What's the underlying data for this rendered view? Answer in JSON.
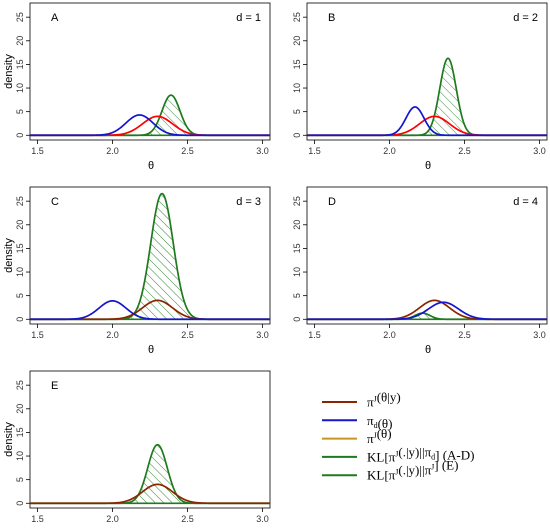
{
  "chart_data": [
    {
      "type": "line",
      "panel": "A",
      "annotation": "d = 1",
      "xlabel": "θ",
      "ylabel": "density",
      "xlim": [
        1.45,
        3.05
      ],
      "ylim": [
        -1,
        28
      ],
      "xticks": [
        1.5,
        2.0,
        2.5,
        3.0
      ],
      "xtick_labels": [
        "1.5",
        "2.0",
        "2.5",
        "3.0"
      ],
      "yticks": [
        0,
        5,
        10,
        15,
        20,
        25
      ],
      "ytick_labels": [
        "0",
        "5",
        "10",
        "15",
        "20",
        "25"
      ],
      "series": [
        {
          "key": "posterior",
          "color": "#ff0000",
          "peak_x": 2.3,
          "peak_y": 4.0,
          "sd": 0.1
        },
        {
          "key": "prior",
          "color": "#1515cc",
          "peak_x": 2.18,
          "peak_y": 4.3,
          "sd": 0.09
        },
        {
          "key": "kl",
          "color": "#1e7a1e",
          "peak_x": 2.39,
          "peak_y": 8.5,
          "sd": 0.06,
          "hatched": true
        }
      ]
    },
    {
      "type": "line",
      "panel": "B",
      "annotation": "d = 2",
      "xlabel": "θ",
      "ylabel": "",
      "xlim": [
        1.45,
        3.05
      ],
      "ylim": [
        -1,
        28
      ],
      "xticks": [
        1.5,
        2.0,
        2.5,
        3.0
      ],
      "xtick_labels": [
        "1.5",
        "2.0",
        "2.5",
        "3.0"
      ],
      "yticks": [
        0,
        5,
        10,
        15,
        20,
        25
      ],
      "ytick_labels": [
        "0",
        "5",
        "10",
        "15",
        "20",
        "25"
      ],
      "series": [
        {
          "key": "posterior",
          "color": "#ff0000",
          "peak_x": 2.3,
          "peak_y": 4.0,
          "sd": 0.1
        },
        {
          "key": "prior",
          "color": "#1515cc",
          "peak_x": 2.17,
          "peak_y": 6.0,
          "sd": 0.06
        },
        {
          "key": "kl",
          "color": "#1e7a1e",
          "peak_x": 2.39,
          "peak_y": 16.3,
          "sd": 0.055,
          "hatched": true
        }
      ]
    },
    {
      "type": "line",
      "panel": "C",
      "annotation": "d = 3",
      "xlabel": "θ",
      "ylabel": "density",
      "xlim": [
        1.45,
        3.05
      ],
      "ylim": [
        -1,
        28
      ],
      "xticks": [
        1.5,
        2.0,
        2.5,
        3.0
      ],
      "xtick_labels": [
        "1.5",
        "2.0",
        "2.5",
        "3.0"
      ],
      "yticks": [
        0,
        5,
        10,
        15,
        20,
        25
      ],
      "ytick_labels": [
        "0",
        "5",
        "10",
        "15",
        "20",
        "25"
      ],
      "series": [
        {
          "key": "posterior",
          "color": "#8b2500",
          "peak_x": 2.3,
          "peak_y": 4.0,
          "sd": 0.1
        },
        {
          "key": "prior",
          "color": "#1515cc",
          "peak_x": 2.0,
          "peak_y": 3.9,
          "sd": 0.09
        },
        {
          "key": "kl",
          "color": "#1e7a1e",
          "peak_x": 2.33,
          "peak_y": 26.6,
          "sd": 0.075,
          "hatched": true
        }
      ]
    },
    {
      "type": "line",
      "panel": "D",
      "annotation": "d = 4",
      "xlabel": "θ",
      "ylabel": "",
      "xlim": [
        1.45,
        3.05
      ],
      "ylim": [
        -1,
        28
      ],
      "xticks": [
        1.5,
        2.0,
        2.5,
        3.0
      ],
      "xtick_labels": [
        "1.5",
        "2.0",
        "2.5",
        "3.0"
      ],
      "yticks": [
        0,
        5,
        10,
        15,
        20,
        25
      ],
      "ytick_labels": [
        "0",
        "5",
        "10",
        "15",
        "20",
        "25"
      ],
      "series": [
        {
          "key": "posterior",
          "color": "#8b2500",
          "peak_x": 2.3,
          "peak_y": 4.0,
          "sd": 0.1
        },
        {
          "key": "prior",
          "color": "#1515cc",
          "peak_x": 2.36,
          "peak_y": 3.6,
          "sd": 0.1
        },
        {
          "key": "kl",
          "color": "#1e7a1e",
          "peak_x": 2.22,
          "peak_y": 1.3,
          "sd": 0.05,
          "hatched": true
        }
      ]
    },
    {
      "type": "line",
      "panel": "E",
      "annotation": "",
      "xlabel": "θ",
      "ylabel": "density",
      "xlim": [
        1.45,
        3.05
      ],
      "ylim": [
        -1,
        28
      ],
      "xticks": [
        1.5,
        2.0,
        2.5,
        3.0
      ],
      "xtick_labels": [
        "1.5",
        "2.0",
        "2.5",
        "3.0"
      ],
      "yticks": [
        0,
        5,
        10,
        15,
        20,
        25
      ],
      "ytick_labels": [
        "0",
        "5",
        "10",
        "15",
        "20",
        "25"
      ],
      "series": [
        {
          "key": "posterior",
          "color": "#8b2500",
          "peak_x": 2.3,
          "peak_y": 4.0,
          "sd": 0.1
        },
        {
          "key": "kl",
          "color": "#1e7a1e",
          "peak_x": 2.3,
          "peak_y": 12.4,
          "sd": 0.065,
          "hatched": true
        }
      ]
    }
  ],
  "legend": {
    "items": [
      {
        "key": "posterior",
        "color": "#8b2500",
        "parts": [
          [
            "t",
            "π"
          ],
          [
            "sup",
            "J"
          ],
          [
            "t",
            "(θ|y)"
          ]
        ]
      },
      {
        "key": "prior_d",
        "color": "#1515cc",
        "parts": [
          [
            "t",
            "π"
          ],
          [
            "sub",
            "d"
          ],
          [
            "t",
            "(θ)"
          ]
        ]
      },
      {
        "key": "prior_j",
        "color": "#c8961e",
        "parts": [
          [
            "t",
            "π"
          ],
          [
            "sup",
            "J"
          ],
          [
            "t",
            "(θ)"
          ]
        ]
      },
      {
        "key": "kl_ad",
        "color": "#1e7a1e",
        "parts": [
          [
            "t",
            "KL[π"
          ],
          [
            "sup",
            "J"
          ],
          [
            "t",
            "(.|y)||π"
          ],
          [
            "sub",
            "d"
          ],
          [
            "t",
            "] (A-D)"
          ]
        ]
      },
      {
        "key": "kl_e",
        "color": "#1e7a1e",
        "parts": [
          [
            "t",
            "KL[π"
          ],
          [
            "sup",
            "J"
          ],
          [
            "t",
            "(.|y)||π"
          ],
          [
            "sup",
            "J"
          ],
          [
            "t",
            "] (E)"
          ]
        ]
      }
    ]
  }
}
